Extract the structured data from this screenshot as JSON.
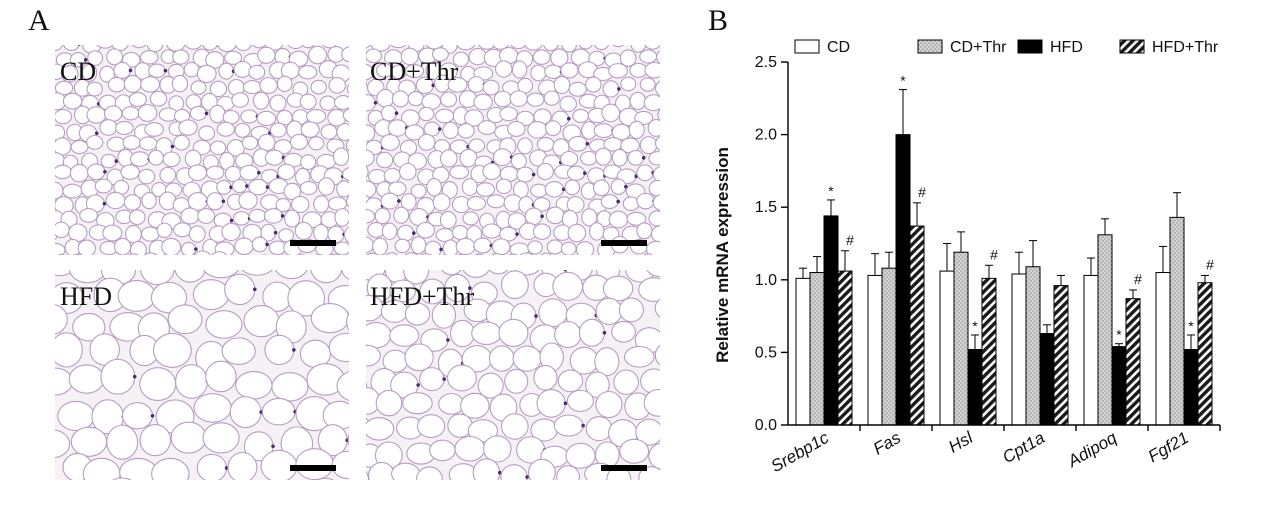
{
  "panels": {
    "a_label": "A",
    "b_label": "B"
  },
  "micrographs": [
    {
      "label": "CD"
    },
    {
      "label": "CD+Thr"
    },
    {
      "label": "HFD"
    },
    {
      "label": "HFD+Thr"
    }
  ],
  "chart_data": {
    "type": "bar",
    "ylabel": "Relative mRNA expression",
    "xlabel": "",
    "ylim": [
      0,
      2.5
    ],
    "yticks": [
      "0.0",
      "0.5",
      "1.0",
      "1.5",
      "2.0",
      "2.5"
    ],
    "categories": [
      "Srebp1c",
      "Fas",
      "Hsl",
      "Cpt1a",
      "Adipoq",
      "Fgf21"
    ],
    "legend_position": "top",
    "series": [
      {
        "name": "CD",
        "fill": "white",
        "values": [
          1.01,
          1.03,
          1.06,
          1.04,
          1.03,
          1.05
        ],
        "errors": [
          0.07,
          0.15,
          0.19,
          0.15,
          0.12,
          0.18
        ],
        "marks": [
          "",
          "",
          "",
          "",
          "",
          ""
        ]
      },
      {
        "name": "CD+Thr",
        "fill": "dotted",
        "values": [
          1.05,
          1.08,
          1.19,
          1.09,
          1.31,
          1.43
        ],
        "errors": [
          0.11,
          0.11,
          0.14,
          0.18,
          0.11,
          0.17
        ],
        "marks": [
          "",
          "",
          "",
          "",
          "",
          ""
        ]
      },
      {
        "name": "HFD",
        "fill": "black",
        "values": [
          1.44,
          2.0,
          0.52,
          0.63,
          0.54,
          0.52
        ],
        "errors": [
          0.11,
          0.31,
          0.1,
          0.06,
          0.02,
          0.1
        ],
        "marks": [
          "*",
          "*",
          "*",
          "",
          "*",
          "*"
        ]
      },
      {
        "name": "HFD+Thr",
        "fill": "hatched",
        "values": [
          1.06,
          1.37,
          1.01,
          0.96,
          0.87,
          0.98
        ],
        "errors": [
          0.14,
          0.16,
          0.09,
          0.07,
          0.06,
          0.05
        ],
        "marks": [
          "#",
          "#",
          "#",
          "",
          "#",
          "#"
        ]
      }
    ]
  }
}
